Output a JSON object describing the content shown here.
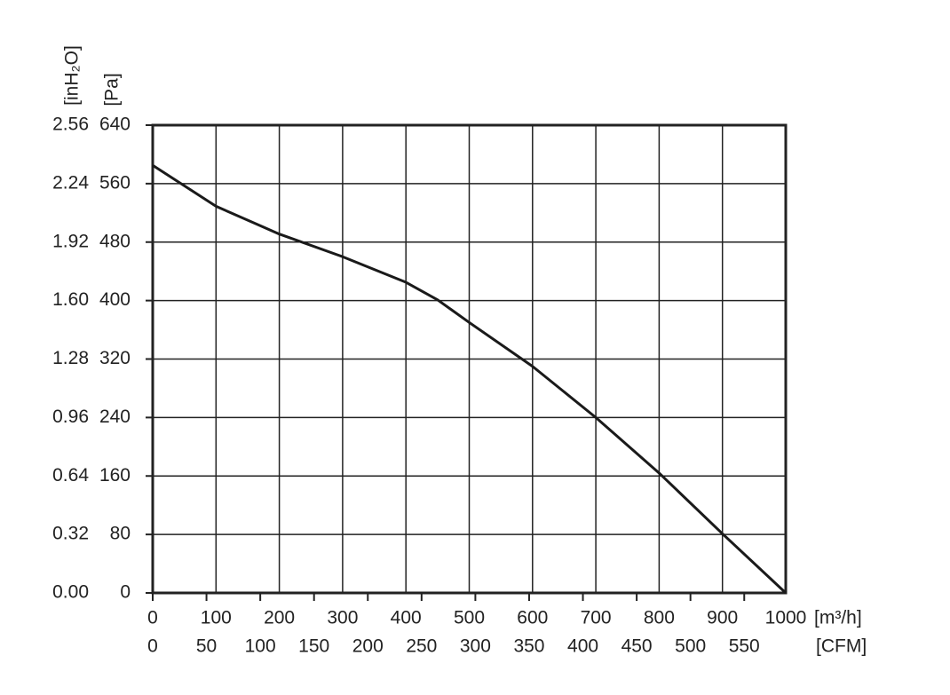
{
  "chart_data": {
    "type": "line",
    "y_label": "[Pa]",
    "y2_label": "[inH₂O]",
    "x_label": "[m³/h]",
    "x2_label": "[CFM]",
    "series": [
      {
        "color": "#1a1a1a",
        "x": [
          0,
          100,
          200,
          300,
          400,
          450,
          500,
          600,
          700,
          800,
          900,
          1000
        ],
        "values": [
          585,
          529,
          491,
          460,
          425,
          401,
          370,
          310,
          240,
          164,
          81,
          0
        ]
      }
    ],
    "xlim": [
      0,
      1000
    ],
    "xticks": [
      0,
      100,
      200,
      300,
      400,
      500,
      600,
      700,
      800,
      900,
      1000
    ],
    "x2lim": [
      0,
      588.6
    ],
    "x2ticks": [
      0,
      50,
      100,
      150,
      200,
      250,
      300,
      350,
      400,
      450,
      500,
      550
    ],
    "ylim": [
      0,
      640
    ],
    "yticks": [
      0,
      80,
      160,
      240,
      320,
      400,
      480,
      560,
      640
    ],
    "y2lim": [
      0,
      2.56
    ],
    "y2ticks": [
      {
        "value": 0,
        "label": "0.00"
      },
      0.32,
      0.64,
      0.96,
      1.28,
      {
        "value": 1.6,
        "label": "1.60"
      },
      1.92,
      2.24,
      2.56
    ],
    "grid": true
  }
}
